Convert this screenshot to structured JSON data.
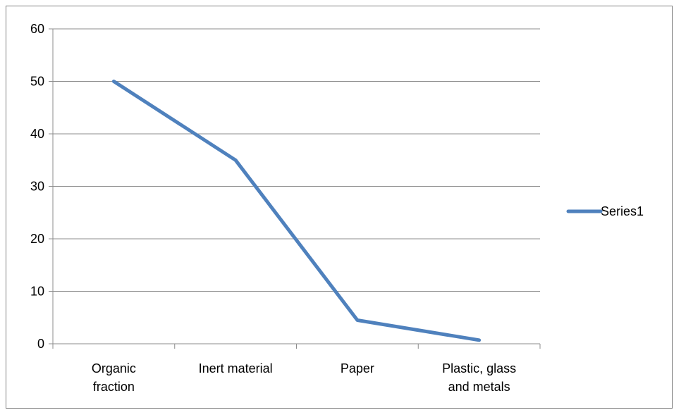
{
  "chart_data": {
    "type": "line",
    "categories": [
      [
        "Organic",
        "fraction"
      ],
      [
        "Inert material"
      ],
      [
        "Paper"
      ],
      [
        "Plastic, glass",
        "and metals"
      ]
    ],
    "series": [
      {
        "name": "Series1",
        "values": [
          50,
          35,
          4.5,
          0.7
        ],
        "color": "#4f81bd"
      }
    ],
    "yticks": [
      0,
      10,
      20,
      30,
      40,
      50,
      60
    ],
    "ylim": [
      0,
      60
    ],
    "grid": true,
    "legend": "right",
    "gridline_color": "#8c8c8c"
  }
}
